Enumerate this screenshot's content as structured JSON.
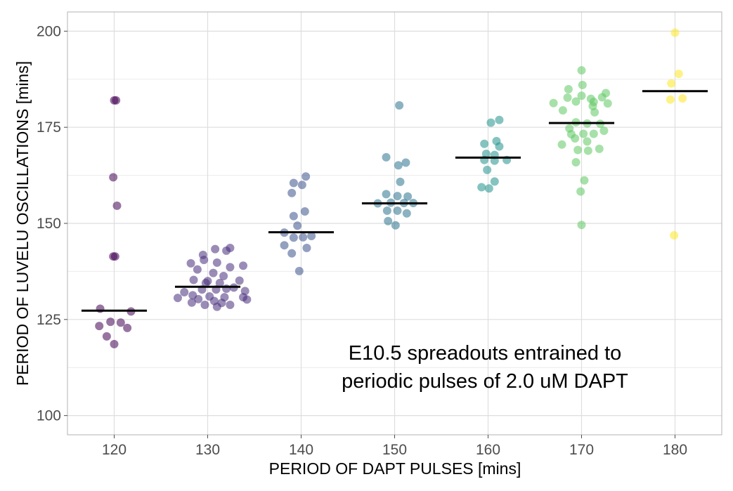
{
  "chart_data": {
    "type": "scatter",
    "xlabel": "PERIOD OF DAPT PULSES [mins]",
    "ylabel": "PERIOD OF LUVELU OSCILLATIONS [mins]",
    "xlim": [
      115,
      185
    ],
    "ylim": [
      95,
      205
    ],
    "xticks": [
      120,
      130,
      140,
      150,
      160,
      170,
      180
    ],
    "yticks": [
      100,
      125,
      150,
      175,
      200
    ],
    "x_tick_labels": [
      "120",
      "130",
      "140",
      "150",
      "160",
      "170",
      "180"
    ],
    "y_tick_labels": [
      "100",
      "125",
      "150",
      "175",
      "200"
    ],
    "grid": true,
    "annotation": [
      "E10.5 spreadouts entrained to",
      "periodic pulses of 2.0 uM DAPT"
    ],
    "median_line_color": "#000000",
    "groups": [
      {
        "x": 120,
        "color": "#440154",
        "median": 127.3,
        "points": [
          [
            120.0,
            182
          ],
          [
            120.2,
            182
          ],
          [
            119.9,
            162
          ],
          [
            120.3,
            154.6
          ],
          [
            119.9,
            141.4
          ],
          [
            120.1,
            141.4
          ],
          [
            118.5,
            127.8
          ],
          [
            119.6,
            124.4
          ],
          [
            120.7,
            124.2
          ],
          [
            118.4,
            123.3
          ],
          [
            121.4,
            122.8
          ],
          [
            121.8,
            127.1
          ],
          [
            119.2,
            120.6
          ],
          [
            120.0,
            118.6
          ]
        ]
      },
      {
        "x": 130,
        "color": "#472d7b",
        "median": 133.5,
        "points": [
          [
            128.2,
            139.6
          ],
          [
            129.5,
            141.8
          ],
          [
            130.8,
            143.3
          ],
          [
            132.0,
            142.9
          ],
          [
            132.4,
            143.6
          ],
          [
            129.6,
            140.5
          ],
          [
            131.0,
            139.8
          ],
          [
            128.9,
            138.0
          ],
          [
            132.4,
            138.6
          ],
          [
            133.8,
            139.0
          ],
          [
            130.6,
            137.1
          ],
          [
            131.7,
            136.3
          ],
          [
            128.5,
            135.3
          ],
          [
            130.0,
            135.0
          ],
          [
            129.8,
            134.5
          ],
          [
            131.3,
            134.5
          ],
          [
            133.4,
            135.1
          ],
          [
            127.5,
            132.1
          ],
          [
            129.4,
            132.8
          ],
          [
            130.9,
            132.8
          ],
          [
            132.0,
            133.0
          ],
          [
            134.0,
            132.4
          ],
          [
            132.8,
            133.3
          ],
          [
            128.4,
            131.3
          ],
          [
            130.2,
            131.0
          ],
          [
            131.8,
            130.8
          ],
          [
            133.8,
            130.8
          ],
          [
            126.8,
            130.6
          ],
          [
            129.0,
            130.3
          ],
          [
            134.2,
            130.2
          ],
          [
            130.7,
            129.8
          ],
          [
            131.5,
            129.3
          ],
          [
            128.3,
            129.4
          ],
          [
            132.4,
            128.8
          ],
          [
            129.7,
            128.8
          ],
          [
            131.0,
            128.3
          ]
        ]
      },
      {
        "x": 140,
        "color": "#3b528b",
        "median": 147.7,
        "points": [
          [
            140.5,
            162.2
          ],
          [
            139.2,
            160.5
          ],
          [
            140.1,
            160.0
          ],
          [
            139.0,
            157.9
          ],
          [
            140.4,
            153.1
          ],
          [
            139.2,
            151.9
          ],
          [
            139.6,
            149.4
          ],
          [
            138.2,
            147.6
          ],
          [
            141.1,
            146.7
          ],
          [
            139.2,
            146.3
          ],
          [
            140.2,
            146.4
          ],
          [
            138.2,
            144.3
          ],
          [
            140.6,
            143.6
          ],
          [
            139.0,
            142.2
          ],
          [
            139.8,
            137.6
          ]
        ]
      },
      {
        "x": 150,
        "color": "#2c728e",
        "median": 155.2,
        "points": [
          [
            150.5,
            180.7
          ],
          [
            149.1,
            167.2
          ],
          [
            150.4,
            165.1
          ],
          [
            151.2,
            165.8
          ],
          [
            150.6,
            160.8
          ],
          [
            149.1,
            157.6
          ],
          [
            150.3,
            157.1
          ],
          [
            151.4,
            157.0
          ],
          [
            148.2,
            155.2
          ],
          [
            149.6,
            155.4
          ],
          [
            151.0,
            155.3
          ],
          [
            152.0,
            155.3
          ],
          [
            149.2,
            153.3
          ],
          [
            150.3,
            153.3
          ],
          [
            151.3,
            152.6
          ],
          [
            149.3,
            150.6
          ],
          [
            150.1,
            149.5
          ]
        ]
      },
      {
        "x": 160,
        "color": "#21918c",
        "median": 167.1,
        "points": [
          [
            160.3,
            176.2
          ],
          [
            161.2,
            176.9
          ],
          [
            159.6,
            170.7
          ],
          [
            160.9,
            171.4
          ],
          [
            161.2,
            170.0
          ],
          [
            159.8,
            168.1
          ],
          [
            160.7,
            167.8
          ],
          [
            159.6,
            166.5
          ],
          [
            160.7,
            166.3
          ],
          [
            162.0,
            166.5
          ],
          [
            159.9,
            163.9
          ],
          [
            160.7,
            160.9
          ],
          [
            159.3,
            159.4
          ],
          [
            160.1,
            159.1
          ]
        ]
      },
      {
        "x": 170,
        "color": "#5ec962",
        "median": 176.1,
        "points": [
          [
            170.0,
            189.8
          ],
          [
            168.6,
            184.9
          ],
          [
            170.1,
            186.0
          ],
          [
            172.6,
            183.9
          ],
          [
            168.5,
            182.7
          ],
          [
            170.0,
            183.2
          ],
          [
            171.0,
            182.4
          ],
          [
            172.2,
            182.8
          ],
          [
            171.3,
            181.6
          ],
          [
            169.4,
            181.7
          ],
          [
            167.0,
            181.3
          ],
          [
            172.8,
            181.2
          ],
          [
            168.0,
            179.4
          ],
          [
            171.2,
            180.5
          ],
          [
            171.4,
            178.9
          ],
          [
            169.4,
            176.3
          ],
          [
            170.6,
            176.0
          ],
          [
            172.0,
            175.9
          ],
          [
            168.7,
            174.7
          ],
          [
            170.2,
            173.3
          ],
          [
            171.3,
            173.3
          ],
          [
            172.4,
            174.1
          ],
          [
            168.9,
            173.2
          ],
          [
            169.3,
            172.1
          ],
          [
            170.6,
            171.3
          ],
          [
            167.9,
            170.5
          ],
          [
            171.9,
            169.4
          ],
          [
            169.6,
            169.1
          ],
          [
            170.7,
            168.9
          ],
          [
            169.4,
            165.9
          ],
          [
            170.3,
            161.2
          ],
          [
            169.9,
            158.3
          ],
          [
            170.0,
            149.6
          ]
        ]
      },
      {
        "x": 180,
        "color": "#fde725",
        "median": 184.4,
        "points": [
          [
            180.0,
            199.6
          ],
          [
            180.4,
            188.9
          ],
          [
            179.6,
            186.4
          ],
          [
            179.5,
            182.2
          ],
          [
            180.8,
            182.5
          ],
          [
            179.9,
            146.9
          ]
        ]
      }
    ]
  }
}
